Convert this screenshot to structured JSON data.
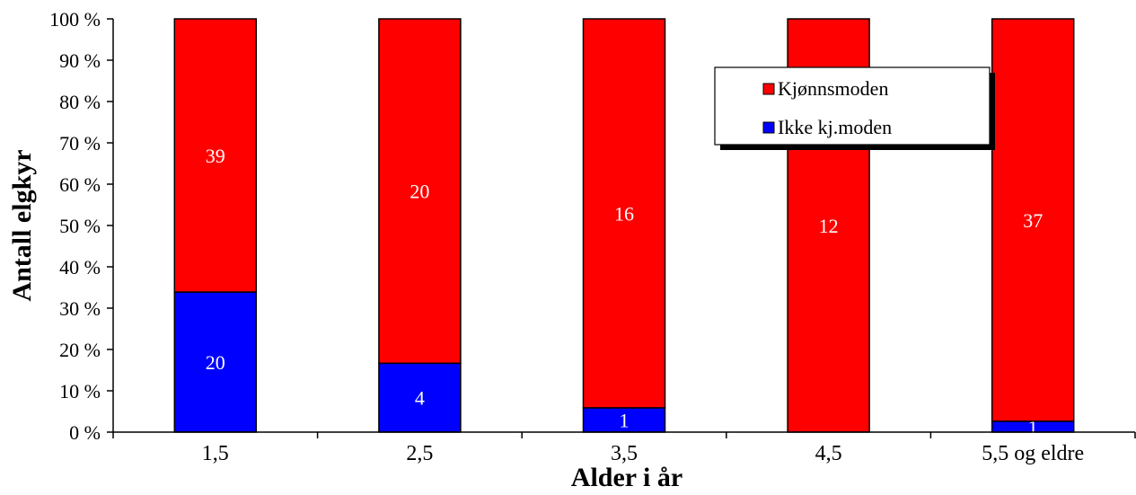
{
  "chart_data": {
    "type": "bar",
    "stacked": true,
    "percent_stacked": true,
    "title": "",
    "xlabel": "Alder i år",
    "ylabel": "Antall elgkyr",
    "categories": [
      "1,5",
      "2,5",
      "3,5",
      "4,5",
      "5,5 og eldre"
    ],
    "series": [
      {
        "name": "Ikke kj.moden",
        "color": "#0000ff",
        "values": [
          20,
          4,
          1,
          0,
          1
        ]
      },
      {
        "name": "Kjønnsmoden",
        "color": "#ff0000",
        "values": [
          39,
          20,
          16,
          12,
          37
        ]
      }
    ],
    "ylim": [
      0,
      100
    ],
    "yticks": [
      "0 %",
      "10 %",
      "20 %",
      "30 %",
      "40 %",
      "50 %",
      "60 %",
      "70 %",
      "80 %",
      "90 %",
      "100 %"
    ],
    "legend_position": "top-right",
    "legend_order": [
      "Kjønnsmoden",
      "Ikke kj.moden"
    ],
    "grid": false
  }
}
